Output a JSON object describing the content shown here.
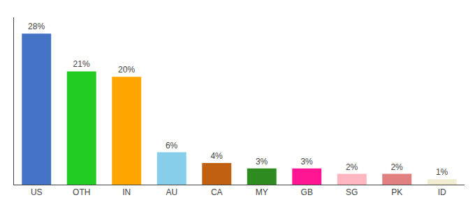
{
  "chart_data": {
    "type": "bar",
    "categories": [
      "US",
      "OTH",
      "IN",
      "AU",
      "CA",
      "MY",
      "GB",
      "SG",
      "PK",
      "ID"
    ],
    "values": [
      28,
      21,
      20,
      6,
      4,
      3,
      3,
      2,
      2,
      1
    ],
    "value_labels": [
      "28%",
      "21%",
      "20%",
      "6%",
      "4%",
      "3%",
      "3%",
      "2%",
      "2%",
      "1%"
    ],
    "colors": [
      "#4472C4",
      "#22CC22",
      "#FFA500",
      "#87CEEB",
      "#C06010",
      "#2E8B20",
      "#FF1493",
      "#FFB6C1",
      "#E08080",
      "#F0EDD0"
    ],
    "ylim": [
      0,
      31
    ],
    "data_labels": true,
    "tick_labels": "x",
    "grid": false
  }
}
